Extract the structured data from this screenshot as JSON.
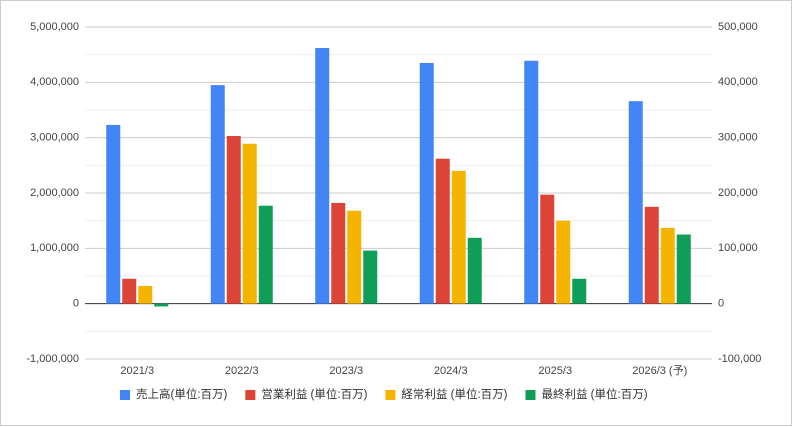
{
  "chart_data": {
    "type": "bar",
    "categories": [
      "2021/3",
      "2022/3",
      "2023/3",
      "2024/3",
      "2025/3",
      "2026/3 (予)"
    ],
    "series": [
      {
        "name": "売上高(単位:百万)",
        "color": "#4285f4",
        "values": [
          3230000,
          3950000,
          4620000,
          4350000,
          4390000,
          3660000
        ]
      },
      {
        "name": "営業利益 (単位:百万)",
        "color": "#db4437",
        "values": [
          45000,
          303000,
          182000,
          262000,
          197000,
          175000
        ],
        "axis": "y2"
      },
      {
        "name": "経常利益 (単位:百万)",
        "color": "#f4b400",
        "values": [
          32000,
          289000,
          168000,
          240000,
          150000,
          137000
        ],
        "axis": "y2"
      },
      {
        "name": "最終利益 (単位:百万)",
        "color": "#0f9d58",
        "values": [
          -5000,
          177000,
          96000,
          119000,
          45000,
          125000
        ],
        "axis": "y2"
      }
    ],
    "ylim": [
      -1000000,
      5000000
    ],
    "yticks": [
      {
        "value": -1000000,
        "label": "-1,000,000"
      },
      0,
      {
        "value": 1000000,
        "label": "1,000,000"
      },
      {
        "value": 2000000,
        "label": "2,000,000"
      },
      {
        "value": 3000000,
        "label": "3,000,000"
      },
      {
        "value": 4000000,
        "label": "4,000,000"
      },
      {
        "value": 5000000,
        "label": "5,000,000"
      }
    ],
    "y2lim": [
      -100000,
      500000
    ],
    "y2ticks": [
      {
        "value": -100000,
        "label": "-100,000"
      },
      0,
      {
        "value": 100000,
        "label": "100,000"
      },
      {
        "value": 200000,
        "label": "200,000"
      },
      {
        "value": 300000,
        "label": "300,000"
      },
      {
        "value": 400000,
        "label": "400,000"
      },
      {
        "value": 500000,
        "label": "500,000"
      }
    ],
    "grid": true,
    "minor_grid": true,
    "legend": "bottom"
  }
}
